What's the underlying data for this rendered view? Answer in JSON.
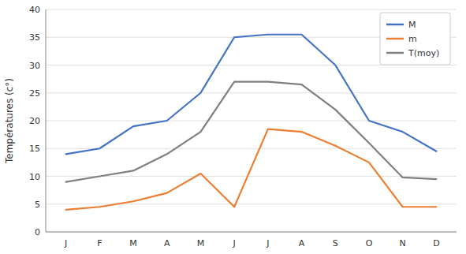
{
  "chart_data": {
    "type": "line",
    "categories": [
      "J",
      "F",
      "M",
      "A",
      "M",
      "J",
      "J",
      "A",
      "S",
      "O",
      "N",
      "D"
    ],
    "series": [
      {
        "name": "M",
        "color": "#4472C4",
        "values": [
          14,
          15,
          19,
          20,
          25,
          35,
          35.5,
          35.5,
          30,
          20,
          18,
          14.5
        ]
      },
      {
        "name": "m",
        "color": "#ED7D31",
        "values": [
          4,
          4.5,
          5.5,
          7,
          10.5,
          4.5,
          18.5,
          18,
          15.5,
          12.5,
          4.5,
          4.5
        ]
      },
      {
        "name": "T(moy)",
        "color": "#7F7F7F",
        "values": [
          9,
          10,
          11,
          14,
          18,
          27,
          27,
          26.5,
          22,
          16,
          9.8,
          9.5
        ]
      }
    ],
    "y_label": "Températures (c°)",
    "ylim": [
      0,
      40
    ],
    "yticks": [
      0,
      5,
      10,
      15,
      20,
      25,
      30,
      35,
      40
    ],
    "grid": true,
    "legend": "upper right"
  }
}
